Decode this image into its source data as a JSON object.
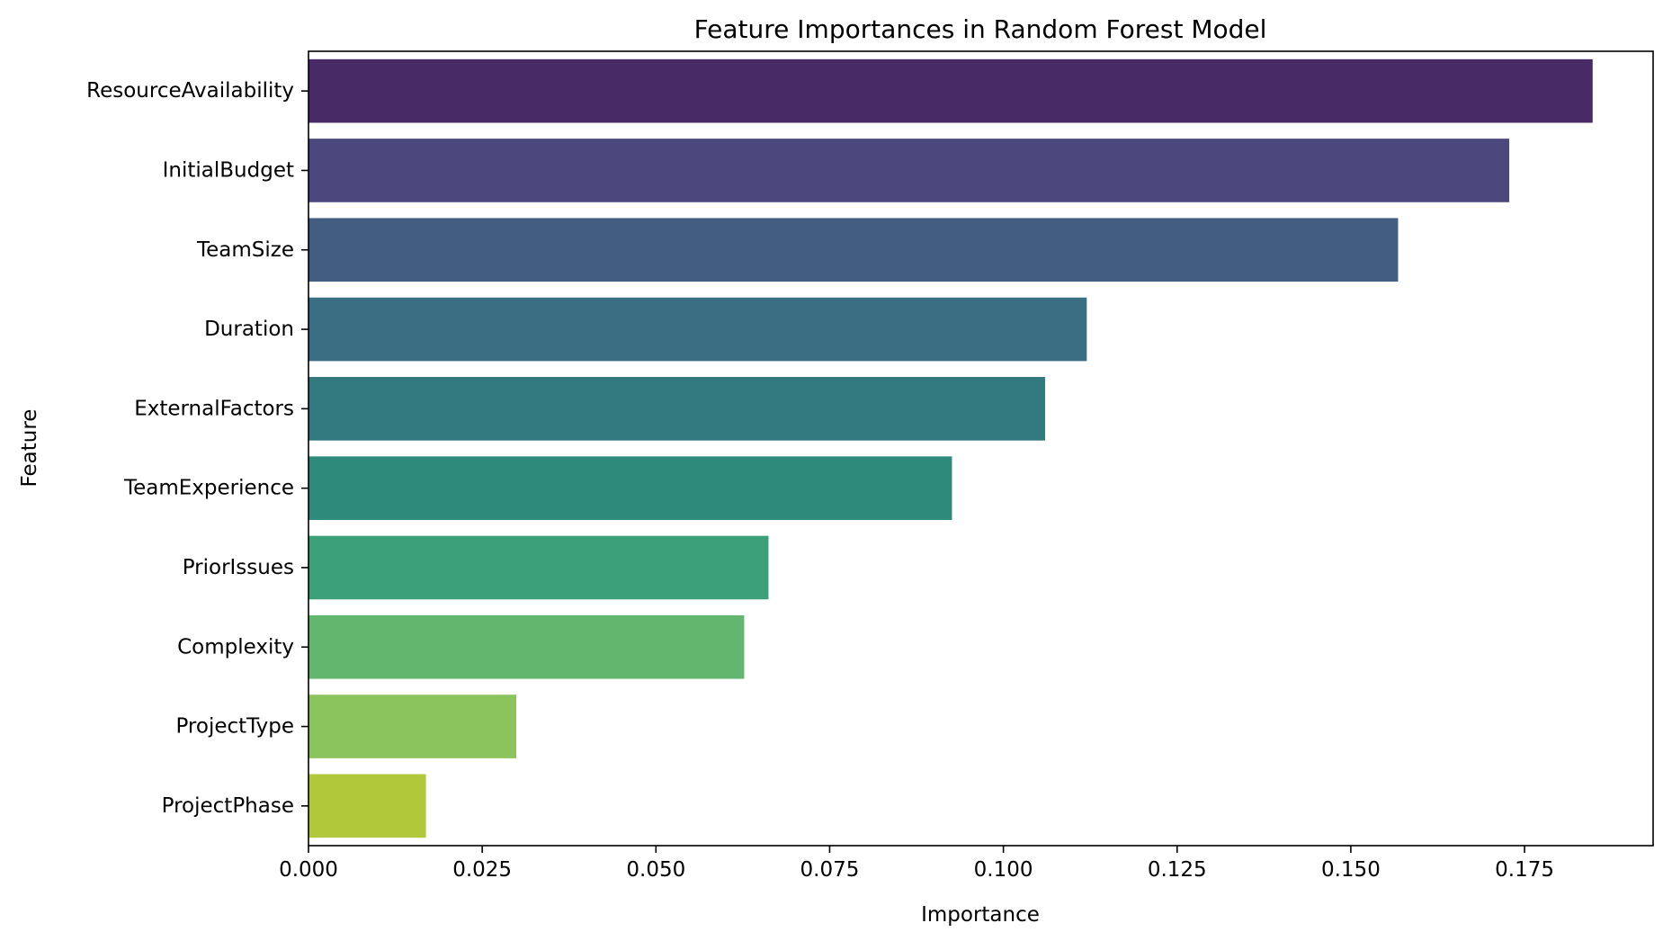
{
  "chart_data": {
    "type": "bar",
    "orientation": "horizontal",
    "title": "Feature Importances in Random Forest Model",
    "xlabel": "Importance",
    "ylabel": "Feature",
    "xlim": [
      0,
      0.1935
    ],
    "xticks": [
      0.0,
      0.025,
      0.05,
      0.075,
      0.1,
      0.125,
      0.15,
      0.175
    ],
    "xtick_labels": [
      "0.000",
      "0.025",
      "0.050",
      "0.075",
      "0.100",
      "0.125",
      "0.150",
      "0.175"
    ],
    "grid": false,
    "legend": "none",
    "categories": [
      "ResourceAvailability",
      "InitialBudget",
      "TeamSize",
      "Duration",
      "ExternalFactors",
      "TeamExperience",
      "PriorIssues",
      "Complexity",
      "ProjectType",
      "ProjectPhase"
    ],
    "values": [
      0.1848,
      0.1728,
      0.1568,
      0.112,
      0.106,
      0.0926,
      0.0662,
      0.0627,
      0.0299,
      0.0169
    ],
    "colors": [
      "#482a67",
      "#4a487c",
      "#425c82",
      "#3a6e82",
      "#31797e",
      "#2e8a7b",
      "#3b9f78",
      "#62b66e",
      "#8bc35c",
      "#b2c83b"
    ]
  }
}
